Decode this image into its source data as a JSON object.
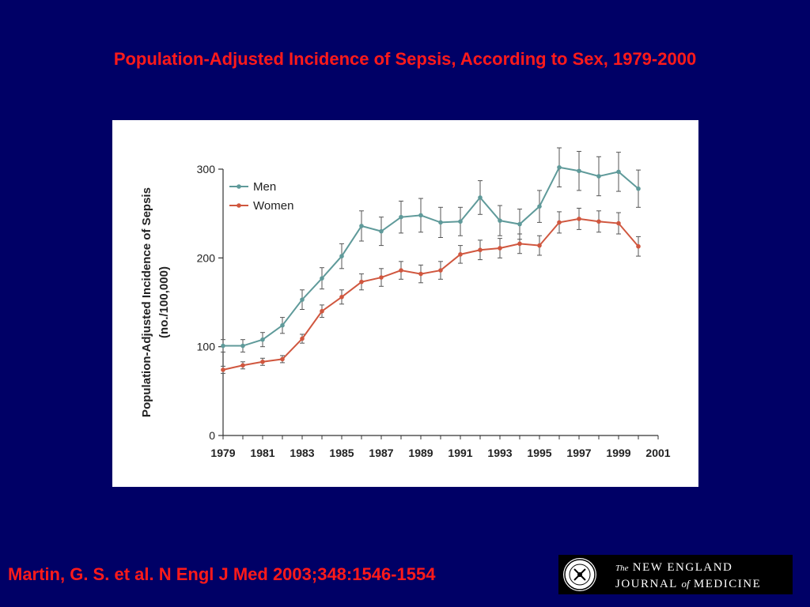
{
  "slide": {
    "title": "Population-Adjusted Incidence of Sepsis, According to Sex, 1979-2000",
    "citation": "Martin, G. S. et al. N Engl J Med 2003;348:1546-1554",
    "background": "#000066",
    "title_color": "#ff1a1a"
  },
  "logo": {
    "the": "The",
    "line1": "NEW ENGLAND",
    "journal": "JOURNAL",
    "of": "of",
    "medicine": "MEDICINE",
    "seal_icon": "journal-seal-icon"
  },
  "chart_data": {
    "type": "line",
    "title": "",
    "xlabel": "",
    "ylabel": "Population-Adjusted Incidence of Sepsis",
    "ylabel_units": "(no./100,000)",
    "x": [
      1979,
      1980,
      1981,
      1982,
      1983,
      1984,
      1985,
      1986,
      1987,
      1988,
      1989,
      1990,
      1991,
      1992,
      1993,
      1994,
      1995,
      1996,
      1997,
      1998,
      1999,
      2000
    ],
    "xlim": [
      1979,
      2001
    ],
    "ylim": [
      0,
      300
    ],
    "xticks": [
      "1979",
      "1981",
      "1983",
      "1985",
      "1987",
      "1989",
      "1991",
      "1993",
      "1995",
      "1997",
      "1999",
      "2001"
    ],
    "yticks": [
      "0",
      "100",
      "200",
      "300"
    ],
    "legend_position": "top-left",
    "grid": false,
    "series": [
      {
        "name": "Men",
        "color": "#5f9a9a",
        "values": [
          101,
          101,
          108,
          124,
          153,
          177,
          202,
          236,
          230,
          246,
          248,
          240,
          241,
          268,
          242,
          238,
          258,
          302,
          298,
          292,
          297,
          278
        ],
        "error": [
          7,
          7,
          8,
          9,
          11,
          12,
          14,
          17,
          16,
          18,
          19,
          17,
          16,
          19,
          17,
          17,
          18,
          22,
          22,
          22,
          22,
          21
        ]
      },
      {
        "name": "Women",
        "color": "#d0573f",
        "values": [
          74,
          79,
          83,
          86,
          109,
          140,
          156,
          173,
          178,
          186,
          182,
          186,
          204,
          209,
          211,
          216,
          214,
          240,
          244,
          241,
          239,
          213
        ],
        "error": [
          4,
          4,
          4,
          4,
          5,
          7,
          8,
          9,
          10,
          10,
          10,
          10,
          10,
          11,
          11,
          11,
          11,
          12,
          12,
          12,
          12,
          11
        ]
      }
    ]
  }
}
